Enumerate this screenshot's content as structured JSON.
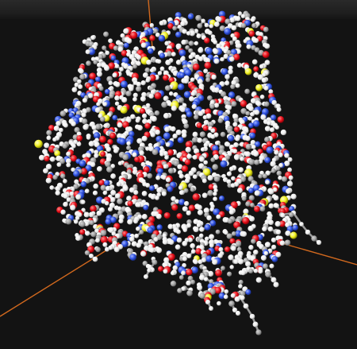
{
  "viewer": {
    "background": "#131313",
    "toolbar_color": "#262626",
    "axis_color": "#d2691e",
    "bond_color": "#9a9a9a",
    "atom_colors": {
      "hydrogen": "#f4f4f4",
      "carbon": "#a8a8a8",
      "oxygen": "#e8101a",
      "nitrogen": "#2d4fe0",
      "sulfur": "#f0f020"
    }
  }
}
